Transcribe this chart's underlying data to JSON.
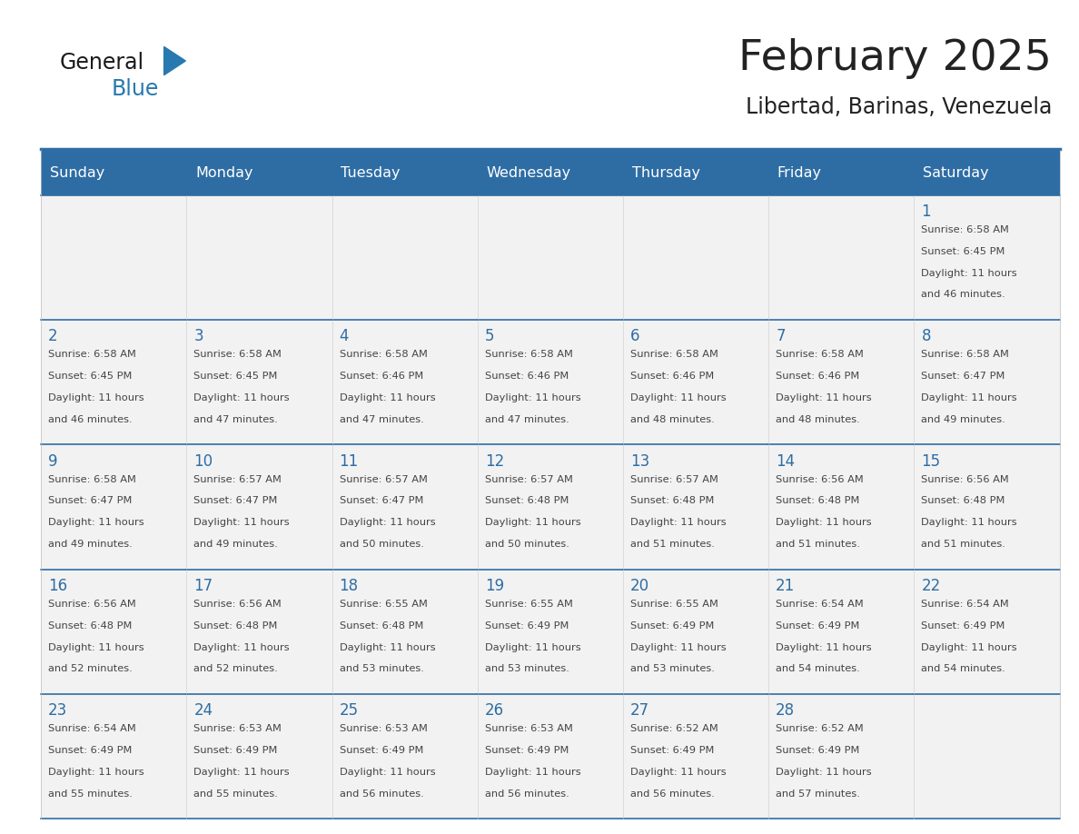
{
  "title": "February 2025",
  "subtitle": "Libertad, Barinas, Venezuela",
  "days_of_week": [
    "Sunday",
    "Monday",
    "Tuesday",
    "Wednesday",
    "Thursday",
    "Friday",
    "Saturday"
  ],
  "header_bg": "#2E6DA4",
  "header_text": "#FFFFFF",
  "cell_bg": "#F2F2F2",
  "border_color": "#2E6DA4",
  "day_num_color": "#2E6DA4",
  "text_color": "#444444",
  "title_color": "#222222",
  "logo_dark": "#1a1a1a",
  "logo_blue": "#2E7FBF",
  "calendar_data": [
    [
      null,
      null,
      null,
      null,
      null,
      null,
      {
        "day": 1,
        "sunrise": "6:58 AM",
        "sunset": "6:45 PM",
        "daylight": "11 hours",
        "daylight2": "and 46 minutes."
      }
    ],
    [
      {
        "day": 2,
        "sunrise": "6:58 AM",
        "sunset": "6:45 PM",
        "daylight": "11 hours",
        "daylight2": "and 46 minutes."
      },
      {
        "day": 3,
        "sunrise": "6:58 AM",
        "sunset": "6:45 PM",
        "daylight": "11 hours",
        "daylight2": "and 47 minutes."
      },
      {
        "day": 4,
        "sunrise": "6:58 AM",
        "sunset": "6:46 PM",
        "daylight": "11 hours",
        "daylight2": "and 47 minutes."
      },
      {
        "day": 5,
        "sunrise": "6:58 AM",
        "sunset": "6:46 PM",
        "daylight": "11 hours",
        "daylight2": "and 47 minutes."
      },
      {
        "day": 6,
        "sunrise": "6:58 AM",
        "sunset": "6:46 PM",
        "daylight": "11 hours",
        "daylight2": "and 48 minutes."
      },
      {
        "day": 7,
        "sunrise": "6:58 AM",
        "sunset": "6:46 PM",
        "daylight": "11 hours",
        "daylight2": "and 48 minutes."
      },
      {
        "day": 8,
        "sunrise": "6:58 AM",
        "sunset": "6:47 PM",
        "daylight": "11 hours",
        "daylight2": "and 49 minutes."
      }
    ],
    [
      {
        "day": 9,
        "sunrise": "6:58 AM",
        "sunset": "6:47 PM",
        "daylight": "11 hours",
        "daylight2": "and 49 minutes."
      },
      {
        "day": 10,
        "sunrise": "6:57 AM",
        "sunset": "6:47 PM",
        "daylight": "11 hours",
        "daylight2": "and 49 minutes."
      },
      {
        "day": 11,
        "sunrise": "6:57 AM",
        "sunset": "6:47 PM",
        "daylight": "11 hours",
        "daylight2": "and 50 minutes."
      },
      {
        "day": 12,
        "sunrise": "6:57 AM",
        "sunset": "6:48 PM",
        "daylight": "11 hours",
        "daylight2": "and 50 minutes."
      },
      {
        "day": 13,
        "sunrise": "6:57 AM",
        "sunset": "6:48 PM",
        "daylight": "11 hours",
        "daylight2": "and 51 minutes."
      },
      {
        "day": 14,
        "sunrise": "6:56 AM",
        "sunset": "6:48 PM",
        "daylight": "11 hours",
        "daylight2": "and 51 minutes."
      },
      {
        "day": 15,
        "sunrise": "6:56 AM",
        "sunset": "6:48 PM",
        "daylight": "11 hours",
        "daylight2": "and 51 minutes."
      }
    ],
    [
      {
        "day": 16,
        "sunrise": "6:56 AM",
        "sunset": "6:48 PM",
        "daylight": "11 hours",
        "daylight2": "and 52 minutes."
      },
      {
        "day": 17,
        "sunrise": "6:56 AM",
        "sunset": "6:48 PM",
        "daylight": "11 hours",
        "daylight2": "and 52 minutes."
      },
      {
        "day": 18,
        "sunrise": "6:55 AM",
        "sunset": "6:48 PM",
        "daylight": "11 hours",
        "daylight2": "and 53 minutes."
      },
      {
        "day": 19,
        "sunrise": "6:55 AM",
        "sunset": "6:49 PM",
        "daylight": "11 hours",
        "daylight2": "and 53 minutes."
      },
      {
        "day": 20,
        "sunrise": "6:55 AM",
        "sunset": "6:49 PM",
        "daylight": "11 hours",
        "daylight2": "and 53 minutes."
      },
      {
        "day": 21,
        "sunrise": "6:54 AM",
        "sunset": "6:49 PM",
        "daylight": "11 hours",
        "daylight2": "and 54 minutes."
      },
      {
        "day": 22,
        "sunrise": "6:54 AM",
        "sunset": "6:49 PM",
        "daylight": "11 hours",
        "daylight2": "and 54 minutes."
      }
    ],
    [
      {
        "day": 23,
        "sunrise": "6:54 AM",
        "sunset": "6:49 PM",
        "daylight": "11 hours",
        "daylight2": "and 55 minutes."
      },
      {
        "day": 24,
        "sunrise": "6:53 AM",
        "sunset": "6:49 PM",
        "daylight": "11 hours",
        "daylight2": "and 55 minutes."
      },
      {
        "day": 25,
        "sunrise": "6:53 AM",
        "sunset": "6:49 PM",
        "daylight": "11 hours",
        "daylight2": "and 56 minutes."
      },
      {
        "day": 26,
        "sunrise": "6:53 AM",
        "sunset": "6:49 PM",
        "daylight": "11 hours",
        "daylight2": "and 56 minutes."
      },
      {
        "day": 27,
        "sunrise": "6:52 AM",
        "sunset": "6:49 PM",
        "daylight": "11 hours",
        "daylight2": "and 56 minutes."
      },
      {
        "day": 28,
        "sunrise": "6:52 AM",
        "sunset": "6:49 PM",
        "daylight": "11 hours",
        "daylight2": "and 57 minutes."
      },
      null
    ]
  ]
}
